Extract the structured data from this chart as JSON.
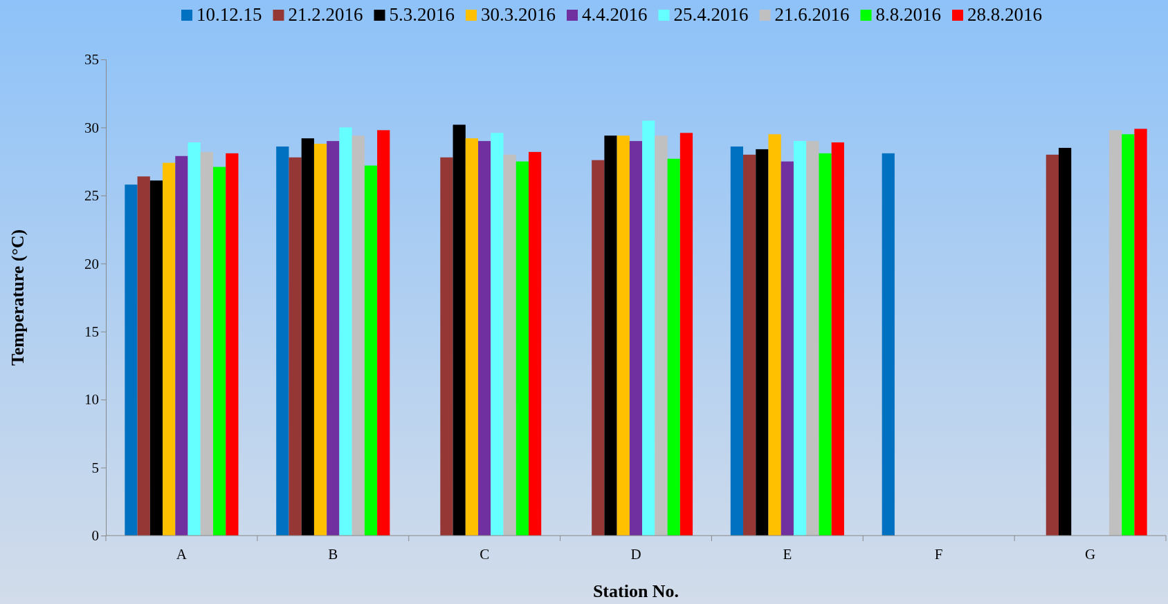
{
  "chart_data": {
    "type": "bar",
    "xlabel": "Station No.",
    "ylabel": "Temperature (°C)",
    "categories": [
      "A",
      "B",
      "C",
      "D",
      "E",
      "F",
      "G"
    ],
    "ylim": [
      0,
      35
    ],
    "yticks": [
      0,
      5,
      10,
      15,
      20,
      25,
      30,
      35
    ],
    "grid": false,
    "legend": "top",
    "series": [
      {
        "name": "10.12.15",
        "color": "#0070c0",
        "values": [
          25.8,
          28.6,
          null,
          null,
          28.6,
          28.1,
          null
        ]
      },
      {
        "name": "21.2.2016",
        "color": "#953735",
        "values": [
          26.4,
          27.8,
          27.8,
          27.6,
          28.0,
          null,
          28.0
        ]
      },
      {
        "name": "5.3.2016",
        "color": "#000000",
        "values": [
          26.1,
          29.2,
          30.2,
          29.4,
          28.4,
          null,
          28.5
        ]
      },
      {
        "name": "30.3.2016",
        "color": "#ffc000",
        "values": [
          27.4,
          28.8,
          29.2,
          29.4,
          29.5,
          null,
          null
        ]
      },
      {
        "name": "4.4.2016",
        "color": "#7030a0",
        "values": [
          27.9,
          29.0,
          29.0,
          29.0,
          27.5,
          null,
          null
        ]
      },
      {
        "name": "25.4.2016",
        "color": "#66ffff",
        "values": [
          28.9,
          30.0,
          29.6,
          30.5,
          29.0,
          null,
          null
        ]
      },
      {
        "name": "21.6.2016",
        "color": "#c0c0c0",
        "values": [
          28.2,
          29.4,
          28.0,
          29.4,
          29.0,
          null,
          29.8
        ]
      },
      {
        "name": "8.8.2016",
        "color": "#00ff00",
        "values": [
          27.1,
          27.2,
          27.5,
          27.7,
          28.1,
          null,
          29.5
        ]
      },
      {
        "name": "28.8.2016",
        "color": "#ff0000",
        "values": [
          28.1,
          29.8,
          28.2,
          29.6,
          28.9,
          null,
          29.9
        ]
      }
    ]
  }
}
